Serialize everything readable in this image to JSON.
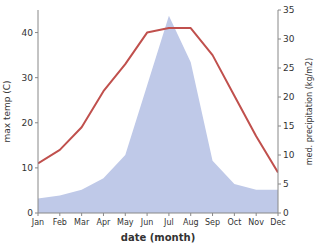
{
  "chart_data": {
    "type": "line",
    "xlabel": "date (month)",
    "ylabel": "max temp (C)",
    "y2label": "med. precipitation (kg/m2)",
    "categories": [
      "Jan",
      "Feb",
      "Mar",
      "Apr",
      "May",
      "Jun",
      "Jul",
      "Aug",
      "Sep",
      "Oct",
      "Nov",
      "Dec"
    ],
    "series": [
      {
        "type": "area",
        "axis": "y2",
        "color": "#bfc9e8",
        "values": [
          2.5,
          3,
          4,
          6,
          10,
          22,
          34,
          26,
          9,
          5,
          4,
          4
        ]
      },
      {
        "type": "line",
        "color": "#c0504d",
        "values": [
          11,
          14,
          19,
          27,
          33,
          40,
          41,
          41,
          35,
          26,
          17,
          9
        ]
      }
    ],
    "ylim": [
      0,
      45
    ],
    "yticks": [
      0,
      10,
      20,
      30,
      40
    ],
    "y2lim": [
      0,
      35
    ],
    "y2ticks": [
      0,
      5,
      10,
      15,
      20,
      25,
      30,
      35
    ]
  }
}
